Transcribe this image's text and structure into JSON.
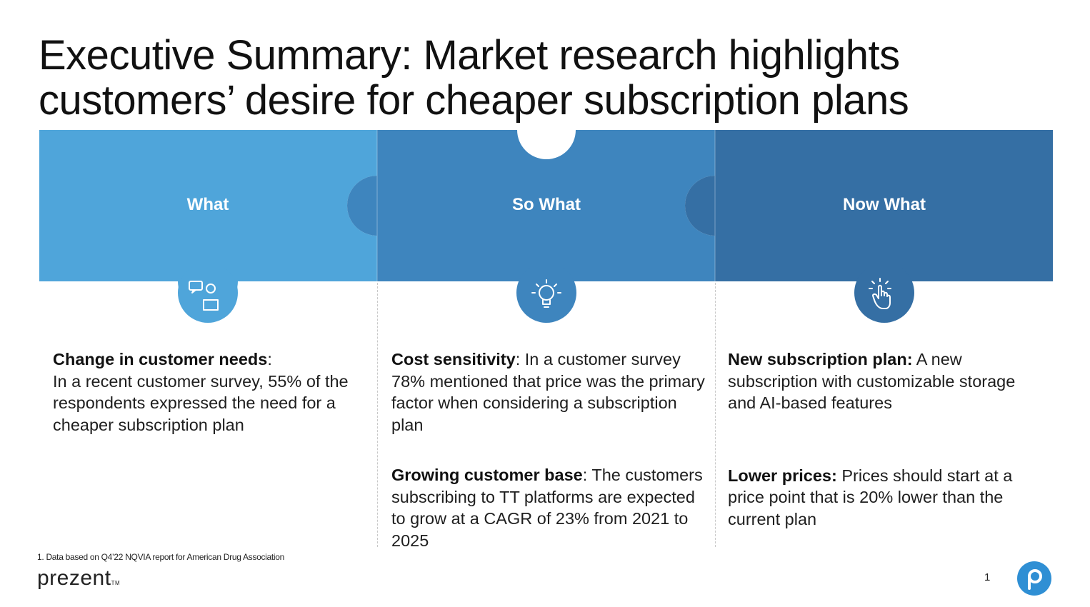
{
  "title": {
    "line1": "Executive Summary: Market research highlights",
    "line2": "customers’ desire for cheaper subscription plans"
  },
  "colors": {
    "what": "#4FA5DA",
    "so_what": "#3E85BE",
    "now_what": "#356FA4",
    "accent": "#2F8FD4"
  },
  "columns": [
    {
      "header": "What",
      "icon": "chat-person-icon",
      "items": [
        {
          "bold": "Change in customer needs",
          "sep": ":",
          "text": "In a recent customer survey, 55% of the respondents expressed the need for a cheaper subscription plan"
        }
      ]
    },
    {
      "header": "So What",
      "icon": "lightbulb-icon",
      "items": [
        {
          "bold": "Cost sensitivity",
          "sep": ":",
          "text": " In a customer survey 78% mentioned that price was the primary factor when considering a subscription plan"
        },
        {
          "bold": "Growing customer base",
          "sep": ":",
          "text": " The customers subscribing to TT platforms are expected to grow at a CAGR of 23% from 2021 to 2025"
        }
      ]
    },
    {
      "header": "Now What",
      "icon": "pointer-hand-icon",
      "items": [
        {
          "bold": "New subscription plan:",
          "sep": "",
          "text": " A new subscription with customizable storage and AI-based features"
        },
        {
          "bold": "Lower prices:",
          "sep": "",
          "text": " Prices should start at a price point that is 20% lower than the current plan"
        }
      ]
    }
  ],
  "footnote": "1. Data based on Q4’22 NQVIA report for American Drug Association",
  "logo": {
    "text": "prezent",
    "tm": "TM"
  },
  "page_number": "1"
}
